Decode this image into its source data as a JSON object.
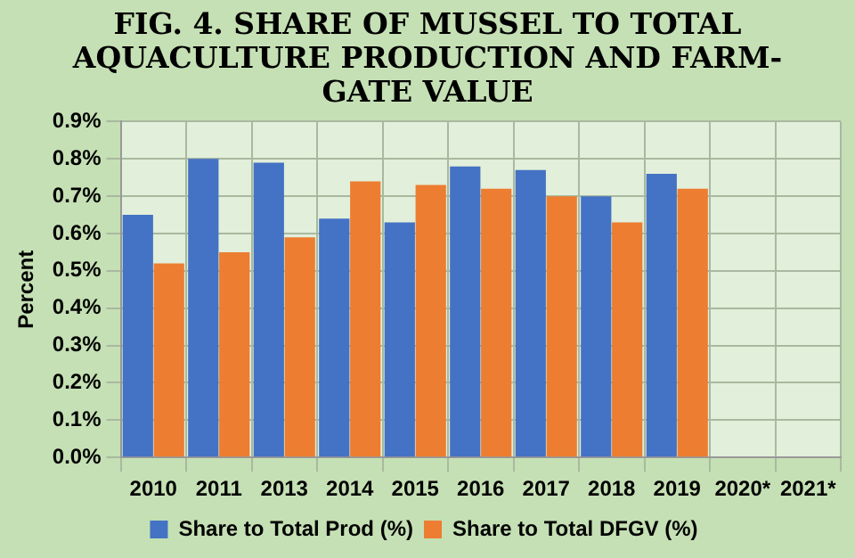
{
  "chart_data": {
    "type": "bar",
    "title": "FIG. 4. SHARE OF MUSSEL TO TOTAL AQUACULTURE PRODUCTION AND FARM-GATE VALUE",
    "ylabel": "Percent",
    "categories": [
      "2010",
      "2011",
      "2013",
      "2014",
      "2015",
      "2016",
      "2017",
      "2018",
      "2019",
      "2020*",
      "2021*"
    ],
    "series": [
      {
        "name": "Share to Total Prod (%)",
        "color": "#4472c4",
        "values": [
          0.65,
          0.8,
          0.79,
          0.64,
          0.63,
          0.78,
          0.77,
          0.7,
          0.76,
          null,
          null
        ]
      },
      {
        "name": "Share to Total DFGV (%)",
        "color": "#ed7d31",
        "values": [
          0.52,
          0.55,
          0.59,
          0.74,
          0.73,
          0.72,
          0.7,
          0.63,
          0.72,
          null,
          null
        ]
      }
    ],
    "ylim": [
      0,
      0.9
    ],
    "yticks": [
      {
        "value": 0,
        "label": "0.0%"
      },
      {
        "value": 0.1,
        "label": "0.1%"
      },
      {
        "value": 0.2,
        "label": "0.2%"
      },
      {
        "value": 0.3,
        "label": "0.3%"
      },
      {
        "value": 0.4,
        "label": "0.4%"
      },
      {
        "value": 0.5,
        "label": "0.5%"
      },
      {
        "value": 0.6,
        "label": "0.6%"
      },
      {
        "value": 0.7,
        "label": "0.7%"
      },
      {
        "value": 0.8,
        "label": "0.8%"
      },
      {
        "value": 0.9,
        "label": "0.9%"
      }
    ],
    "grid": true,
    "legend": "bottom"
  }
}
